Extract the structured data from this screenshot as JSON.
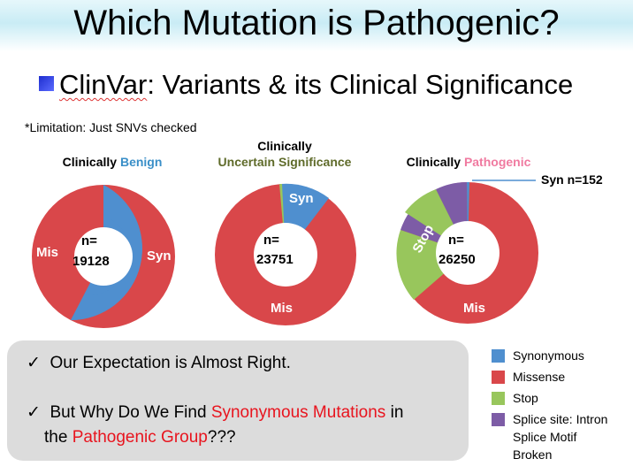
{
  "slide": {
    "title": "Which Mutation is Pathogenic?",
    "subtitle_prefix": "ClinVar",
    "subtitle_rest": ": Variants & its Clinical Significance",
    "limitation": "*Limitation: Just SNVs checked"
  },
  "charts": {
    "benign": {
      "title_plain": "Clinically ",
      "title_colored": "Benign",
      "title_color": "#3a8fc8",
      "center_line1": "n=",
      "center_line2": "19128",
      "labels": {
        "mis": "Mis",
        "syn": "Syn"
      }
    },
    "uncertain": {
      "title_line1": "Clinically",
      "title_line2": "Uncertain Significance",
      "title_color": "#5f6b2a",
      "center_line1": "n=",
      "center_line2": "23751",
      "labels": {
        "syn": "Syn",
        "mis": "Mis"
      }
    },
    "pathogenic": {
      "title_plain": "Clinically ",
      "title_colored": "Pathogenic",
      "title_color": "#f07aa0",
      "center_line1": "n=",
      "center_line2": "26250",
      "labels": {
        "stop": "Stop",
        "mis": "Mis"
      },
      "callout": "Syn n=152"
    }
  },
  "colors": {
    "synonymous": "#4f8fcf",
    "missense": "#d9474a",
    "stop": "#98c65c",
    "splice": "#7d5ca6"
  },
  "box": {
    "check": "✓",
    "line1": "Our Expectation is Almost Right.",
    "line2_a": "But Why Do We Find ",
    "line2_red": "Synonymous Mutations",
    "line2_b": " in",
    "line3_a": "the ",
    "line3_red": "Pathogenic Group",
    "line3_b": "???"
  },
  "legend": {
    "items": [
      {
        "label": "Synonymous"
      },
      {
        "label": "Missense"
      },
      {
        "label": "Stop"
      },
      {
        "label": "Splice site: Intron Splice Motif Broken"
      }
    ]
  }
}
